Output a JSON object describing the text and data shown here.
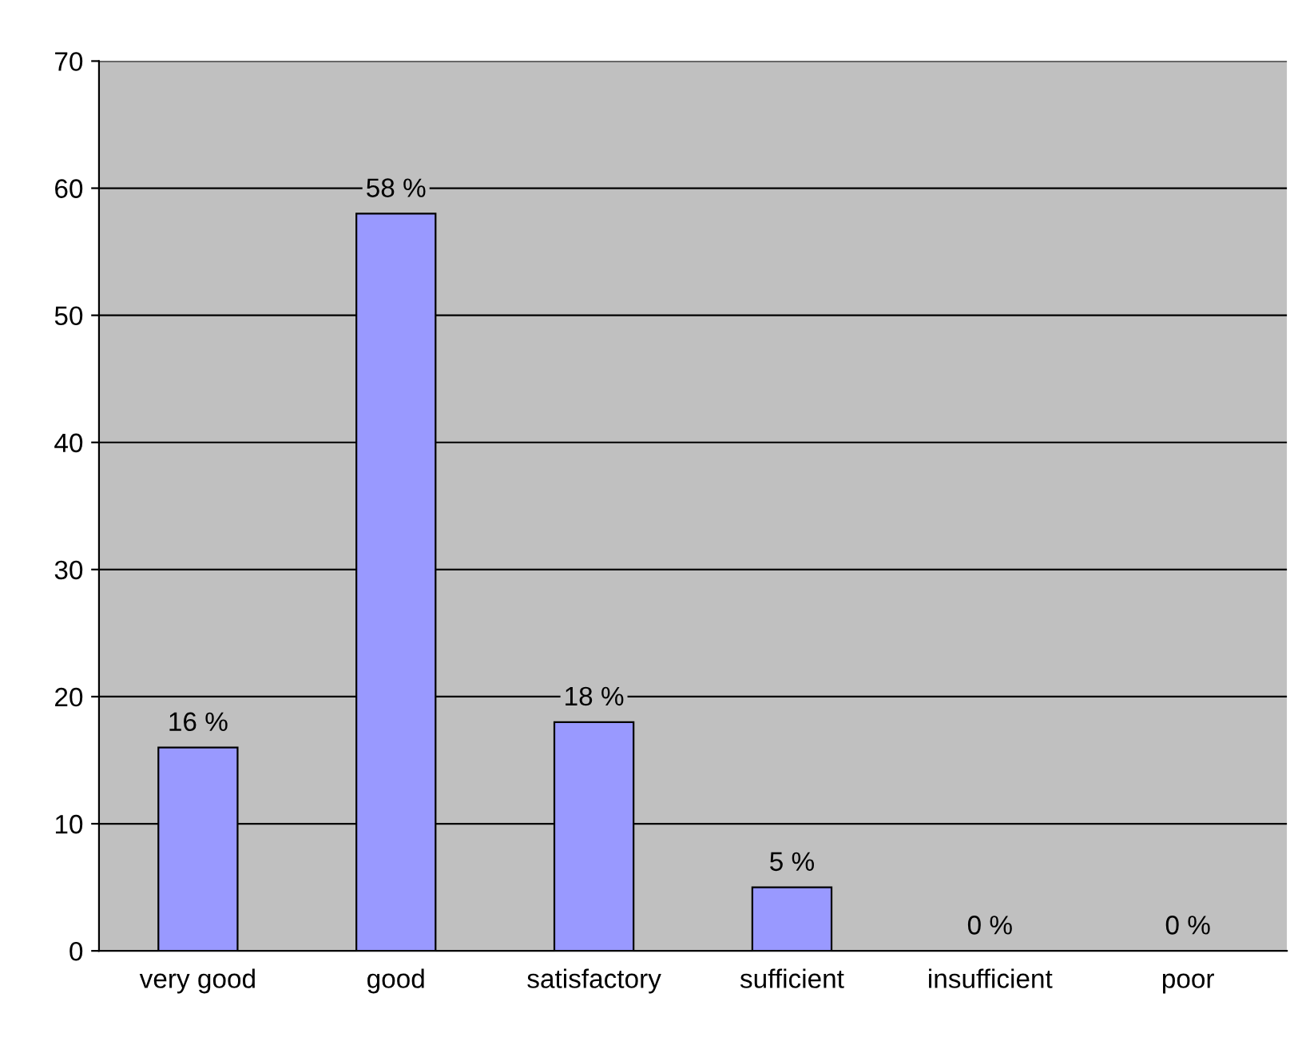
{
  "chart_data": {
    "type": "bar",
    "categories": [
      "very good",
      "good",
      "satisfactory",
      "sufficient",
      "insufficient",
      "poor"
    ],
    "values": [
      16,
      58,
      18,
      5,
      0,
      0
    ],
    "value_labels": [
      "16 %",
      "58 %",
      "18 %",
      "5 %",
      "0 %",
      "0 %"
    ],
    "color": "#9999ff",
    "ylim": [
      0,
      70
    ],
    "yticks": [
      0,
      10,
      20,
      30,
      40,
      50,
      60,
      70
    ],
    "grid": "y",
    "legend": false
  }
}
